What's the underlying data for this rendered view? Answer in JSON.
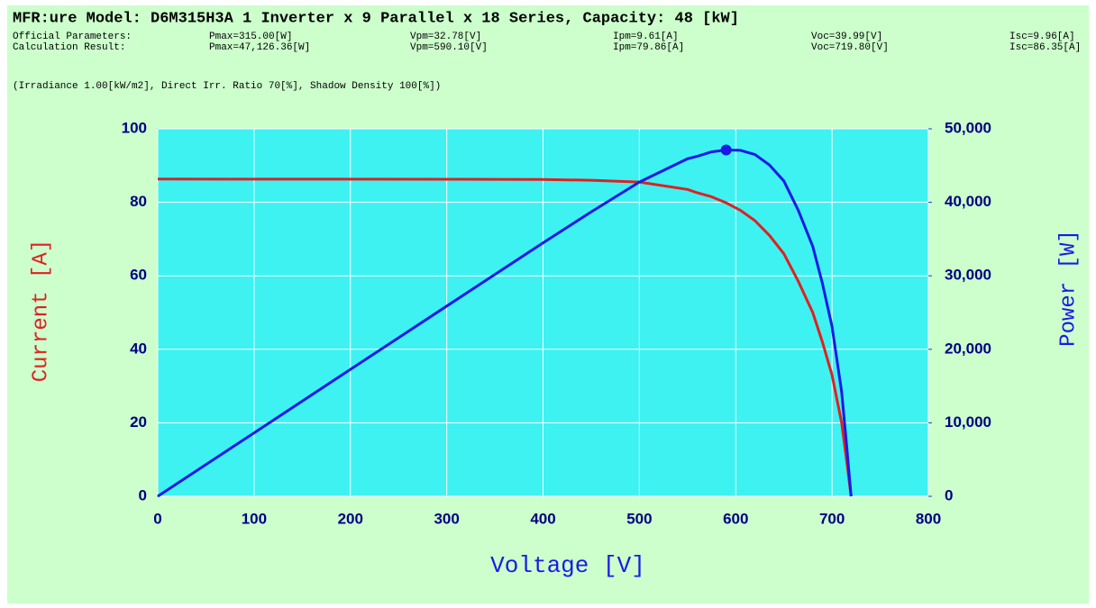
{
  "header": {
    "title": "MFR:ure Model: D6M315H3A 1 Inverter x 9 Parallel x 18 Series, Capacity: 48 [kW]",
    "rows": [
      [
        "Official Parameters:",
        "Pmax=315.00[W]",
        "Vpm=32.78[V]",
        "Ipm=9.61[A]",
        "Voc=39.99[V]",
        "Isc=9.96[A]"
      ],
      [
        "Calculation Result:",
        "Pmax=47,126.36[W]",
        "Vpm=590.10[V]",
        "Ipm=79.86[A]",
        "Voc=719.80[V]",
        "Isc=86.35[A]"
      ]
    ],
    "conditions": "(Irradiance 1.00[kW/m2], Direct Irr. Ratio 70[%], Shadow Density 100[%])"
  },
  "chart_data": {
    "type": "line",
    "x_label": "Voltage [V]",
    "y_label": "Current [A]",
    "y2_label": "Power [W]",
    "x": [
      0,
      100,
      200,
      300,
      400,
      450,
      500,
      550,
      560,
      575,
      590.1,
      605,
      620,
      635,
      650,
      665,
      680,
      690,
      700,
      710,
      715,
      719.8
    ],
    "series": [
      {
        "name": "Current [A]",
        "color": "#e02020",
        "values": [
          86.35,
          86.3,
          86.3,
          86.27,
          86.2,
          86.0,
          85.5,
          83.5,
          82.6,
          81.5,
          79.86,
          77.8,
          75.0,
          71.0,
          66.0,
          58.5,
          50.0,
          42.0,
          33.0,
          20.0,
          10.0,
          0
        ]
      },
      {
        "name": "Power [W]",
        "color": "#1a1ae6",
        "axis": "y2",
        "values": [
          0,
          8630,
          17260,
          25881,
          34480,
          38700,
          42750,
          45925,
          46256,
          46863,
          47126.36,
          47069,
          46500,
          45085,
          42900,
          38903,
          34000,
          28980,
          23100,
          14200,
          7150,
          0
        ]
      }
    ],
    "max_point": {
      "x": 590.1,
      "value": 47126.36,
      "color": "#1a1ae6"
    },
    "xlim": [
      0,
      800
    ],
    "xticks": [
      0,
      100,
      200,
      300,
      400,
      500,
      600,
      700,
      800
    ],
    "ylim": [
      0,
      100
    ],
    "yticks": [
      0,
      20,
      40,
      60,
      80,
      100
    ],
    "y2lim": [
      0,
      50000
    ],
    "y2ticks": [
      0,
      {
        "value": 10000,
        "label": "10,000"
      },
      {
        "value": 20000,
        "label": "20,000"
      },
      {
        "value": 30000,
        "label": "30,000"
      },
      {
        "value": 40000,
        "label": "40,000"
      },
      {
        "value": 50000,
        "label": "50,000"
      }
    ],
    "grid": true,
    "plot_color": "#3ef2f2",
    "background": "#ccffcc"
  }
}
